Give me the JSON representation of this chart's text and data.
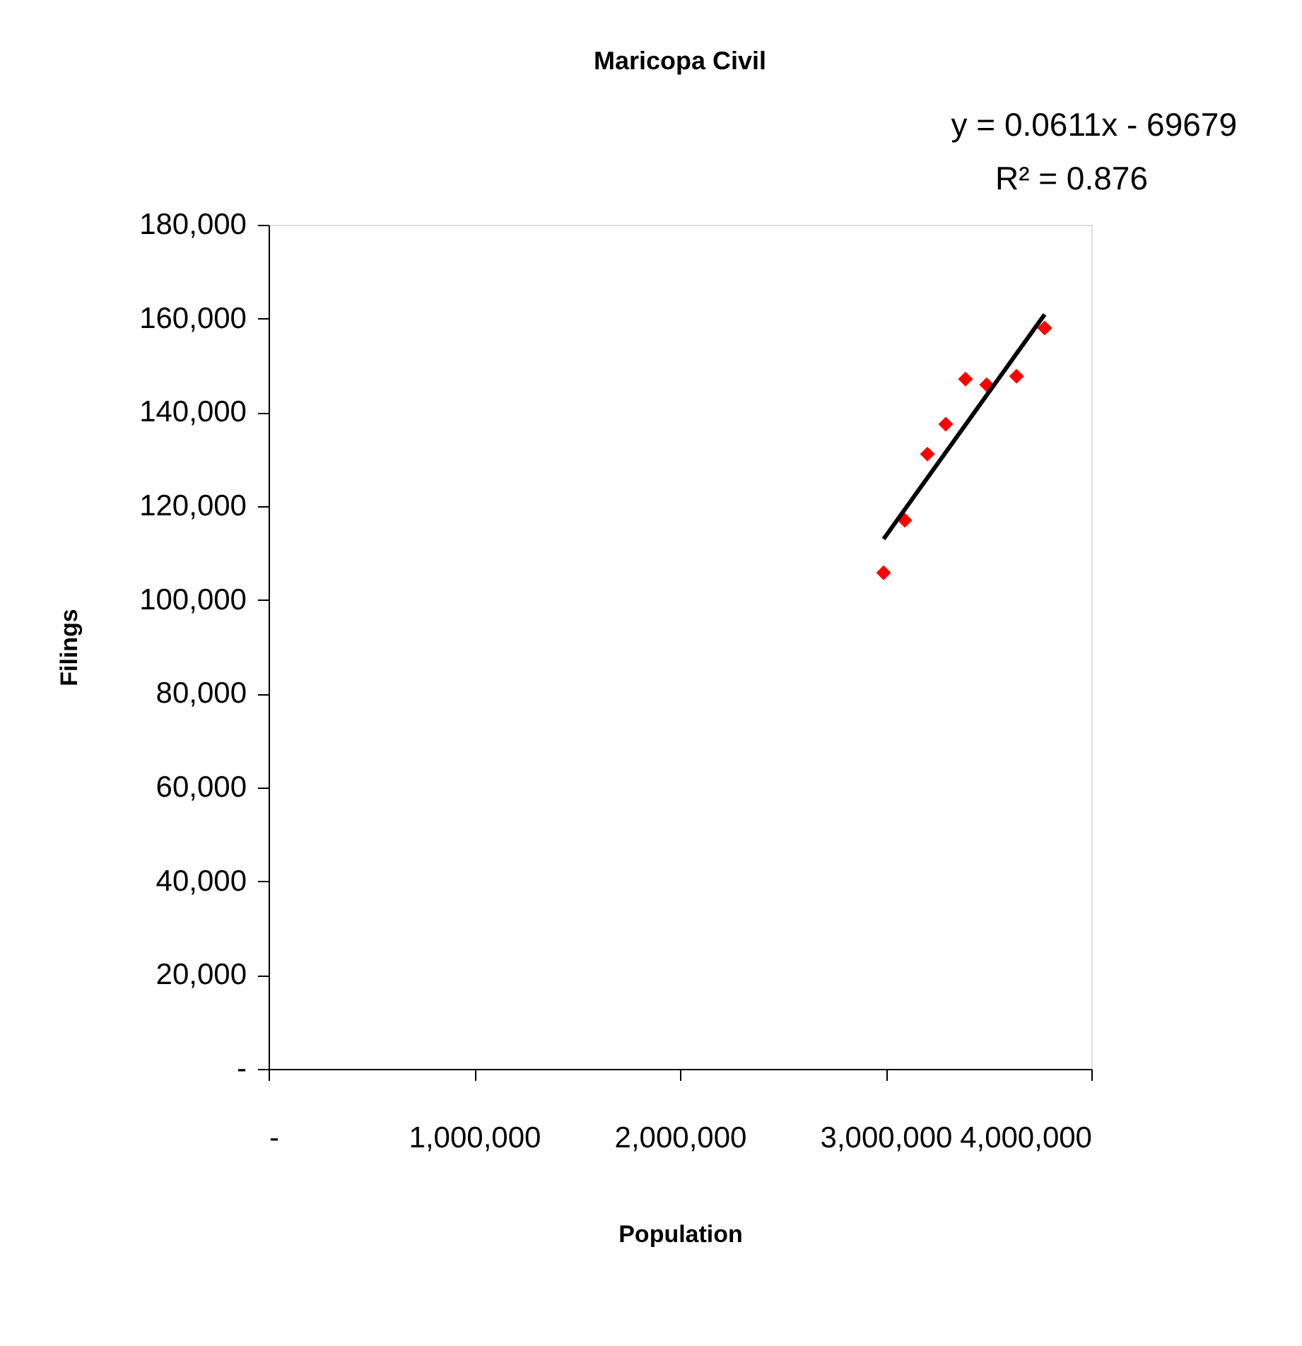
{
  "chart_data": {
    "type": "scatter",
    "title": "Maricopa Civil",
    "xlabel": "Population",
    "ylabel": "Filings",
    "annotations": [
      "y = 0.0611x - 69679",
      "R² = 0.876"
    ],
    "series": [
      {
        "color": "#ff0000",
        "marker": "diamond",
        "x": [
          2990000,
          3093000,
          3203000,
          3292000,
          3388000,
          3491000,
          3636000,
          3773000
        ],
        "values": [
          105800,
          117000,
          131100,
          137500,
          147100,
          145900,
          147700,
          158000
        ]
      },
      {
        "type": "line",
        "color": "#000000",
        "marker": "none",
        "line_style": "solid",
        "x": [
          2990000,
          3773000
        ],
        "values": [
          113000,
          160900
        ]
      }
    ],
    "xlim": [
      0,
      4000000
    ],
    "xticks": [
      {
        "value": 0,
        "label": "-"
      },
      {
        "value": 1000000,
        "label": "1,000,000"
      },
      {
        "value": 2000000,
        "label": "2,000,000"
      },
      {
        "value": 3000000,
        "label": "3,000,000"
      },
      {
        "value": 4000000,
        "label": "4,000,000"
      }
    ],
    "ylim": [
      0,
      180000
    ],
    "yticks": [
      {
        "value": 0,
        "label": "-"
      },
      {
        "value": 20000,
        "label": "20,000"
      },
      {
        "value": 40000,
        "label": "40,000"
      },
      {
        "value": 60000,
        "label": "60,000"
      },
      {
        "value": 80000,
        "label": "80,000"
      },
      {
        "value": 100000,
        "label": "100,000"
      },
      {
        "value": 120000,
        "label": "120,000"
      },
      {
        "value": 140000,
        "label": "140,000"
      },
      {
        "value": 160000,
        "label": "160,000"
      },
      {
        "value": 180000,
        "label": "180,000"
      }
    ],
    "grid": false
  }
}
